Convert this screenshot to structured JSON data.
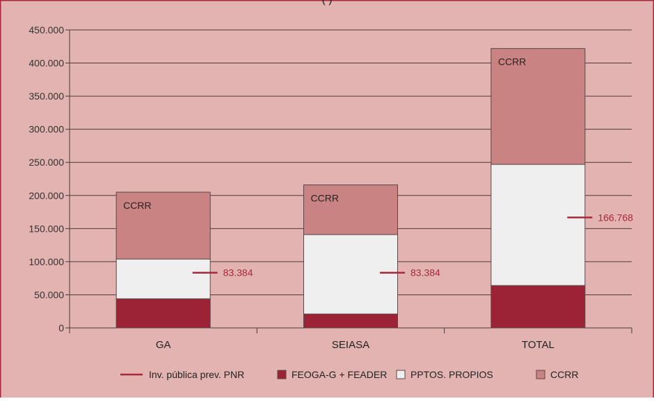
{
  "chart_data": {
    "type": "bar",
    "stacked": true,
    "categories": [
      "GA",
      "SEIASA",
      "TOTAL"
    ],
    "series": [
      {
        "name": "FEOGA-G + FEADER",
        "color": "#9b2335",
        "values": [
          44000,
          21000,
          64000
        ]
      },
      {
        "name": "PPTOS. PROPIOS",
        "color": "#efefef",
        "values": [
          60000,
          120000,
          183000
        ]
      },
      {
        "name": "CCRR",
        "color": "#c98382",
        "values": [
          101000,
          75000,
          175000
        ]
      }
    ],
    "reference_line": {
      "name": "Inv. pública prev. PNR",
      "color": "#a8283b",
      "values": [
        83384,
        83384,
        166768
      ],
      "labels": [
        "83.384",
        "83.384",
        "166.768"
      ]
    },
    "bar_segment_labels": [
      "CCRR",
      "CCRR",
      "CCRR"
    ],
    "y_ticks": [
      {
        "value": 0,
        "label": "0"
      },
      {
        "value": 50000,
        "label": "50.000"
      },
      {
        "value": 100000,
        "label": "100.000"
      },
      {
        "value": 150000,
        "label": "150.000"
      },
      {
        "value": 200000,
        "label": "200.000"
      },
      {
        "value": 250000,
        "label": "250.000"
      },
      {
        "value": 300000,
        "label": "300.000"
      },
      {
        "value": 350000,
        "label": "350.000"
      },
      {
        "value": 400000,
        "label": "400.000"
      },
      {
        "value": 450000,
        "label": "450.000"
      }
    ],
    "ylim": [
      0,
      450000
    ],
    "grid": true,
    "legend_position": "bottom",
    "title_fragment": "(                      )",
    "background_color": "#e2b3b0",
    "border_color": "#a8283b"
  }
}
